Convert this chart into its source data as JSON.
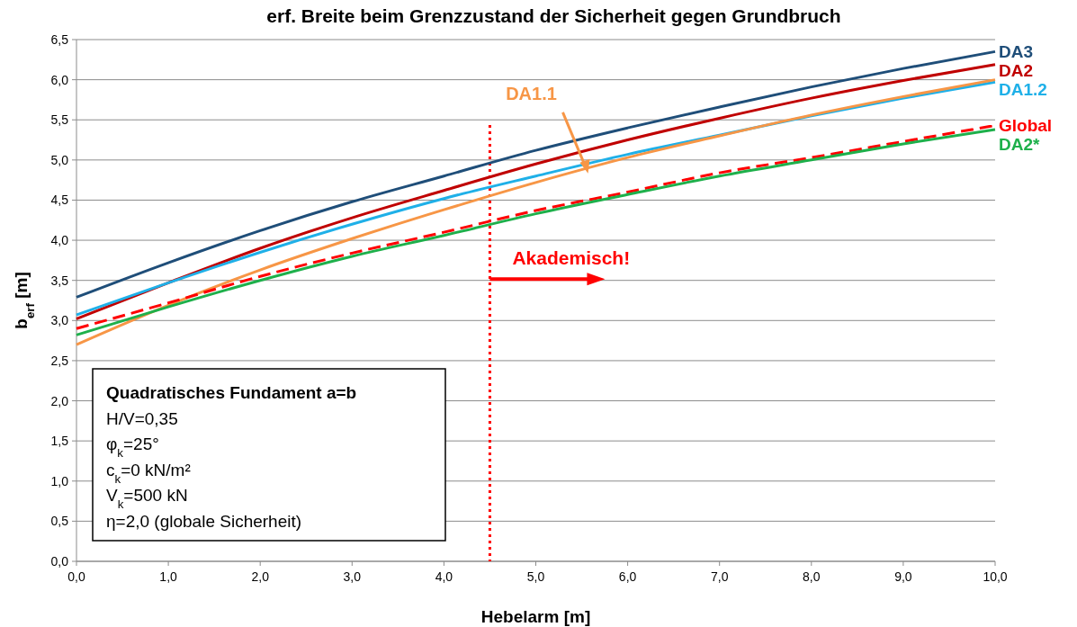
{
  "chart_data": {
    "type": "line",
    "title": "erf. Breite beim Grenzzustand der Sicherheit gegen Grundbruch",
    "xlabel": "Hebelarm [m]",
    "ylabel": "b$_{erf}$ [m]",
    "x": [
      0,
      1,
      2,
      3,
      4,
      5,
      6,
      7,
      8,
      9,
      10
    ],
    "xlim": [
      0,
      10
    ],
    "ylim": [
      0,
      6.5
    ],
    "xticks": [
      {
        "value": 0,
        "label": "0,0"
      },
      {
        "value": 1,
        "label": "1,0"
      },
      {
        "value": 2,
        "label": "2,0"
      },
      {
        "value": 3,
        "label": "3,0"
      },
      {
        "value": 4,
        "label": "4,0"
      },
      {
        "value": 5,
        "label": "5,0"
      },
      {
        "value": 6,
        "label": "6,0"
      },
      {
        "value": 7,
        "label": "7,0"
      },
      {
        "value": 8,
        "label": "8,0"
      },
      {
        "value": 9,
        "label": "9,0"
      },
      {
        "value": 10,
        "label": "10,0"
      }
    ],
    "yticks": [
      {
        "value": 0,
        "label": "0,0"
      },
      {
        "value": 0.5,
        "label": "0,5"
      },
      {
        "value": 1,
        "label": "1,0"
      },
      {
        "value": 1.5,
        "label": "1,5"
      },
      {
        "value": 2,
        "label": "2,0"
      },
      {
        "value": 2.5,
        "label": "2,5"
      },
      {
        "value": 3,
        "label": "3,0"
      },
      {
        "value": 3.5,
        "label": "3,5"
      },
      {
        "value": 4,
        "label": "4,0"
      },
      {
        "value": 4.5,
        "label": "4,5"
      },
      {
        "value": 5,
        "label": "5,0"
      },
      {
        "value": 5.5,
        "label": "5,5"
      },
      {
        "value": 6,
        "label": "6,0"
      },
      {
        "value": 6.5,
        "label": "6,5"
      }
    ],
    "grid": "y",
    "series": [
      {
        "name": "DA3",
        "color": "#1f4e79",
        "values": [
          3.29,
          3.72,
          4.12,
          4.48,
          4.8,
          5.12,
          5.4,
          5.66,
          5.91,
          6.14,
          6.35
        ]
      },
      {
        "name": "DA2",
        "color": "#c00000",
        "values": [
          3.02,
          3.47,
          3.9,
          4.28,
          4.62,
          4.95,
          5.25,
          5.52,
          5.77,
          5.99,
          6.19
        ]
      },
      {
        "name": "DA1.2",
        "color": "#1fb0e8",
        "values": [
          3.07,
          3.47,
          3.85,
          4.2,
          4.52,
          4.8,
          5.07,
          5.31,
          5.55,
          5.77,
          5.97
        ]
      },
      {
        "name": "DA1.1",
        "color": "#f79646",
        "values": [
          2.7,
          3.19,
          3.63,
          4.02,
          4.38,
          4.72,
          5.03,
          5.3,
          5.56,
          5.79,
          6.0
        ]
      },
      {
        "name": "Global",
        "color": "#ff0000",
        "line_style": "dashed",
        "values": [
          2.9,
          3.22,
          3.55,
          3.84,
          4.1,
          4.37,
          4.6,
          4.84,
          5.03,
          5.23,
          5.43
        ]
      },
      {
        "name": "DA2*",
        "color": "#1eb04b",
        "values": [
          2.82,
          3.17,
          3.5,
          3.8,
          4.06,
          4.33,
          4.57,
          4.8,
          5.0,
          5.2,
          5.38
        ]
      }
    ],
    "ref_lines": [
      {
        "axis": "x",
        "value": 4.5,
        "color": "#ff0000",
        "line_style": "dotted"
      }
    ],
    "annotations": [
      {
        "text": "Akademisch!",
        "x": 4.5,
        "y": 3.55
      },
      "Quadratisches Fundament  a=b",
      "H/V=0,35",
      "φ$_{k}$=25°",
      "c$_{k}$=0 kN/m²",
      "V$_{k}$=500 kN",
      "η=2,0 (globale Sicherheit)"
    ]
  }
}
